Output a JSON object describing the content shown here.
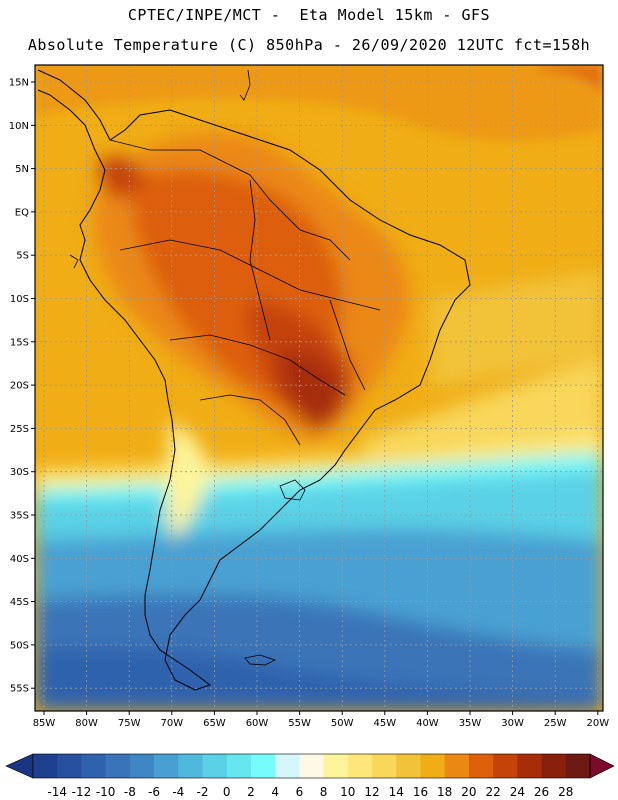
{
  "title_line1": "CPTEC/INPE/MCT -  Eta Model 15km - GFS",
  "title_line2": "Absolute Temperature (C) 850hPa - 26/09/2020 12UTC fct=158h",
  "map": {
    "lat_ticks": [
      "15N",
      "10N",
      "5N",
      "EQ",
      "5S",
      "10S",
      "15S",
      "20S",
      "25S",
      "30S",
      "35S",
      "40S",
      "45S",
      "50S",
      "55S"
    ],
    "lon_ticks": [
      "85W",
      "80W",
      "75W",
      "70W",
      "65W",
      "60W",
      "55W",
      "50W",
      "45W",
      "40W",
      "35W",
      "30W",
      "25W",
      "20W"
    ]
  },
  "colorbar": {
    "labels": [
      "-14",
      "-12",
      "-10",
      "-8",
      "-6",
      "-4",
      "-2",
      "0",
      "2",
      "4",
      "6",
      "8",
      "10",
      "12",
      "14",
      "16",
      "18",
      "20",
      "22",
      "24",
      "26",
      "28"
    ],
    "colors": [
      "#1f3f8f",
      "#27509e",
      "#2f62ad",
      "#3a74b8",
      "#3f86c4",
      "#48a0d2",
      "#4fb8dd",
      "#5ad1e6",
      "#66e6ee",
      "#78fbfb",
      "#d4f7fb",
      "#fdf9e5",
      "#fdf59c",
      "#fde779",
      "#f8d75a",
      "#f2c238",
      "#f0ad15",
      "#eb8814",
      "#dd5e0b",
      "#c54308",
      "#a72d08",
      "#88200b",
      "#6d1a12"
    ],
    "left_arrow_color": "#1b3584",
    "right_arrow_color": "#7d0a2c"
  }
}
